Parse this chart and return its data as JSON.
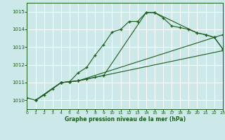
{
  "background_color": "#cce8e8",
  "grid_color": "#b0d8d8",
  "line_color": "#1a5c1a",
  "title": "Graphe pression niveau de la mer (hPa)",
  "xlim": [
    0,
    23
  ],
  "ylim": [
    1009.5,
    1015.5
  ],
  "yticks": [
    1010,
    1011,
    1012,
    1013,
    1014,
    1015
  ],
  "xticks": [
    0,
    1,
    2,
    3,
    4,
    5,
    6,
    7,
    8,
    9,
    10,
    11,
    12,
    13,
    14,
    15,
    16,
    17,
    18,
    19,
    20,
    21,
    22,
    23
  ],
  "lines": [
    {
      "x": [
        0,
        1,
        2,
        3,
        4,
        5,
        6,
        7,
        8,
        9,
        10,
        11,
        12,
        13,
        14,
        15,
        16,
        17,
        18,
        19,
        20,
        21,
        22,
        23
      ],
      "y": [
        1010.15,
        1010.0,
        1010.3,
        1010.65,
        1011.0,
        1011.05,
        1011.55,
        1011.85,
        1012.55,
        1013.15,
        1013.85,
        1014.0,
        1014.45,
        1014.45,
        1014.95,
        1014.95,
        1014.65,
        1014.2,
        1014.1,
        1014.0,
        1013.8,
        1013.7,
        1013.55,
        1012.9
      ]
    },
    {
      "x": [
        1,
        4,
        5,
        6,
        7,
        8,
        9,
        14,
        15,
        20,
        21,
        22,
        23
      ],
      "y": [
        1010.0,
        1011.0,
        1011.05,
        1011.1,
        1011.2,
        1011.3,
        1011.4,
        1014.95,
        1014.95,
        1013.8,
        1013.7,
        1013.55,
        1012.9
      ]
    },
    {
      "x": [
        1,
        4,
        5,
        6,
        23
      ],
      "y": [
        1010.0,
        1011.0,
        1011.05,
        1011.1,
        1013.7
      ]
    },
    {
      "x": [
        1,
        4,
        5,
        6,
        23
      ],
      "y": [
        1010.0,
        1011.0,
        1011.05,
        1011.1,
        1012.8
      ]
    }
  ]
}
